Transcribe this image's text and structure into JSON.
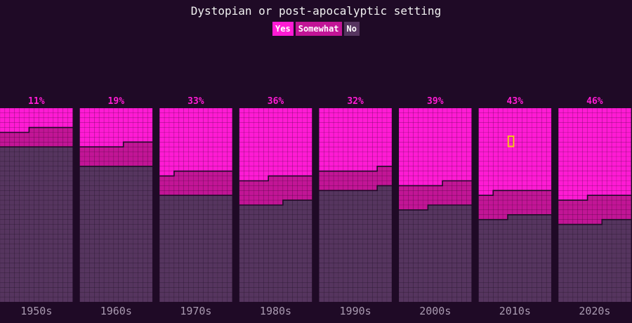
{
  "chart_data": {
    "type": "bar",
    "title": "Dystopian or post-apocalyptic setting",
    "legend": [
      "Yes",
      "Somewhat",
      "No"
    ],
    "colors": {
      "Yes": "#ff1bd4",
      "Somewhat": "#c21596",
      "No": "#56355f",
      "background": "#1f0a26",
      "highlight": "#f5c518"
    },
    "categories": [
      "1950s",
      "1960s",
      "1970s",
      "1980s",
      "1990s",
      "2000s",
      "2010s",
      "2020s"
    ],
    "value_labels": [
      "11%",
      "19%",
      "33%",
      "36%",
      "32%",
      "39%",
      "43%",
      "46%"
    ],
    "series": [
      {
        "name": "Yes",
        "values": [
          11,
          19,
          33,
          36,
          32,
          39,
          43,
          46
        ]
      },
      {
        "name": "Somewhat",
        "values": [
          9,
          11,
          12,
          13,
          10,
          12,
          13,
          13
        ]
      },
      {
        "name": "No",
        "values": [
          80,
          70,
          55,
          51,
          58,
          49,
          44,
          41
        ]
      }
    ],
    "ylim": [
      0,
      100
    ],
    "highlighted_cell": {
      "category": "2010s",
      "series": "Yes"
    }
  }
}
